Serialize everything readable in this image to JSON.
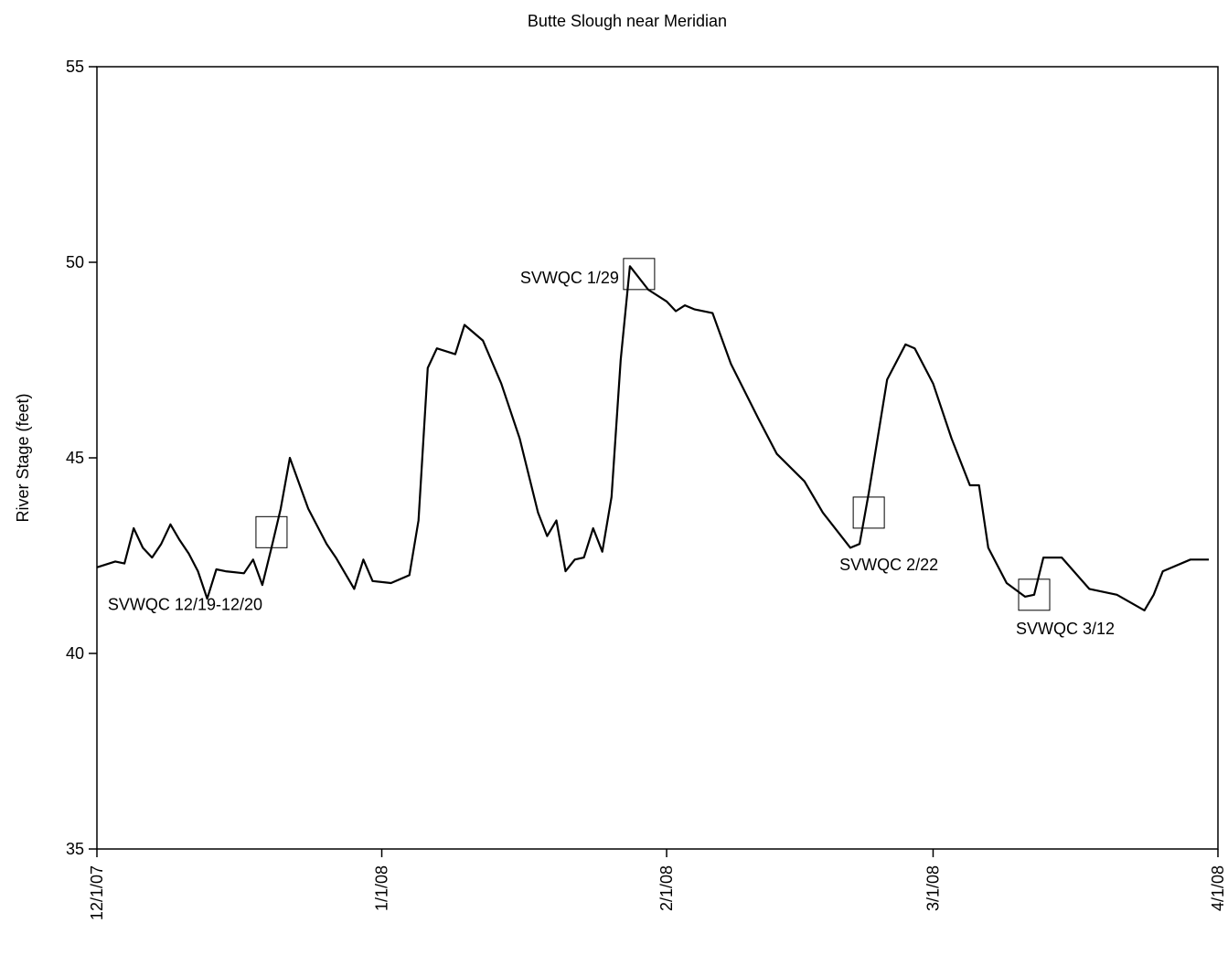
{
  "chart_data": {
    "type": "line",
    "title": "Butte Slough near Meridian",
    "y_label": "River Stage (feet)",
    "xlim": [
      "12/1/07",
      "4/1/08"
    ],
    "xticks": [
      "12/1/07",
      "1/1/08",
      "2/1/08",
      "3/1/08",
      "4/1/08"
    ],
    "ylim": [
      35,
      55
    ],
    "yticks": [
      35,
      40,
      45,
      50,
      55
    ],
    "color": "#000000",
    "x": [
      "12/1/07",
      "12/3/07",
      "12/4/07",
      "12/5/07",
      "12/6/07",
      "12/7/07",
      "12/8/07",
      "12/9/07",
      "12/10/07",
      "12/11/07",
      "12/12/07",
      "12/13/07",
      "12/14/07",
      "12/15/07",
      "12/17/07",
      "12/18/07",
      "12/19/07",
      "12/20/07",
      "12/21/07",
      "12/22/07",
      "12/24/07",
      "12/26/07",
      "12/27/07",
      "12/29/07",
      "12/30/07",
      "12/31/07",
      "1/2/08",
      "1/4/08",
      "1/5/08",
      "1/6/08",
      "1/7/08",
      "1/9/08",
      "1/10/08",
      "1/12/08",
      "1/14/08",
      "1/16/08",
      "1/18/08",
      "1/19/08",
      "1/20/08",
      "1/21/08",
      "1/22/08",
      "1/23/08",
      "1/24/08",
      "1/25/08",
      "1/26/08",
      "1/27/08",
      "1/28/08",
      "1/30/08",
      "2/1/08",
      "2/2/08",
      "2/3/08",
      "2/4/08",
      "2/6/08",
      "2/8/08",
      "2/11/08",
      "2/13/08",
      "2/16/08",
      "2/18/08",
      "2/21/08",
      "2/22/08",
      "2/23/08",
      "2/25/08",
      "2/27/08",
      "2/28/08",
      "3/1/08",
      "3/3/08",
      "3/5/08",
      "3/6/08",
      "3/7/08",
      "3/9/08",
      "3/11/08",
      "3/12/08",
      "3/13/08",
      "3/15/08",
      "3/18/08",
      "3/21/08",
      "3/24/08",
      "3/25/08",
      "3/26/08",
      "3/29/08",
      "3/31/08"
    ],
    "values": [
      42.2,
      42.35,
      42.3,
      43.2,
      42.7,
      42.45,
      42.8,
      43.3,
      42.9,
      42.55,
      42.1,
      41.4,
      42.15,
      42.1,
      42.05,
      42.4,
      41.75,
      42.7,
      43.7,
      45.0,
      43.7,
      42.8,
      42.45,
      41.65,
      42.4,
      41.85,
      41.8,
      42.0,
      43.4,
      47.3,
      47.8,
      47.65,
      48.4,
      48.0,
      46.9,
      45.5,
      43.6,
      43.0,
      43.4,
      42.1,
      42.4,
      42.45,
      43.2,
      42.6,
      44.0,
      47.5,
      49.9,
      49.3,
      49.0,
      48.75,
      48.9,
      48.8,
      48.7,
      47.4,
      46.0,
      45.1,
      44.4,
      43.6,
      42.7,
      42.8,
      44.1,
      47.0,
      47.9,
      47.8,
      46.9,
      45.5,
      44.3,
      44.3,
      42.7,
      41.8,
      41.45,
      41.5,
      42.45,
      42.45,
      41.65,
      41.5,
      41.1,
      41.5,
      42.1,
      42.4,
      42.4
    ],
    "annotations": [
      {
        "text": "SVWQC 12/19-12/20",
        "x": "12/20/07",
        "y": 43.1
      },
      {
        "text": "SVWQC 1/29",
        "x": "1/29/08",
        "y": 49.7
      },
      {
        "text": "SVWQC 2/22",
        "x": "2/23/08",
        "y": 43.6
      },
      {
        "text": "SVWQC 3/12",
        "x": "3/12/08",
        "y": 41.5
      }
    ]
  }
}
